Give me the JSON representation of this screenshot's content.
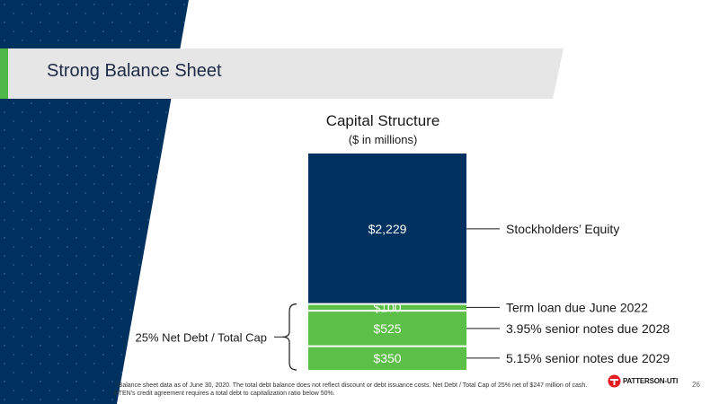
{
  "slide": {
    "title": "Strong Balance Sheet",
    "page_number": "26",
    "footnote": "* Balance sheet data as of June 30, 2020. The total debt balance does not reflect discount or debt issuance costs. Net Debt / Total Cap of 25% net of $247 million of cash. PTEN's credit agreement requires a total debt to capitalization ratio below 50%.",
    "logo_text": "PATTERSON-UTI",
    "colors": {
      "navy": "#00315f",
      "green": "#5cbf47",
      "banner_gray": "#e6e6e6",
      "accent_green": "#4fb848"
    }
  },
  "chart_data": {
    "type": "bar",
    "stacked": true,
    "title": "Capital Structure",
    "subtitle": "($ in millions)",
    "categories": [
      "Capital Structure"
    ],
    "series": [
      {
        "name": "5.15% senior notes due 2029",
        "values": [
          350
        ],
        "label": "$350",
        "color": "#5cbf47"
      },
      {
        "name": "3.95% senior notes due 2028",
        "values": [
          525
        ],
        "label": "$525",
        "color": "#5cbf47"
      },
      {
        "name": "Term loan due June 2022",
        "values": [
          100
        ],
        "label": "$100",
        "color": "#5cbf47"
      },
      {
        "name": "Stockholders’ Equity",
        "values": [
          2229
        ],
        "label": "$2,229",
        "color": "#00315f"
      }
    ],
    "ylim": [
      0,
      3204
    ],
    "annotation": {
      "text": "25% Net Debt / Total Cap",
      "spans_series": [
        0,
        1,
        2
      ]
    },
    "legend": "right"
  }
}
